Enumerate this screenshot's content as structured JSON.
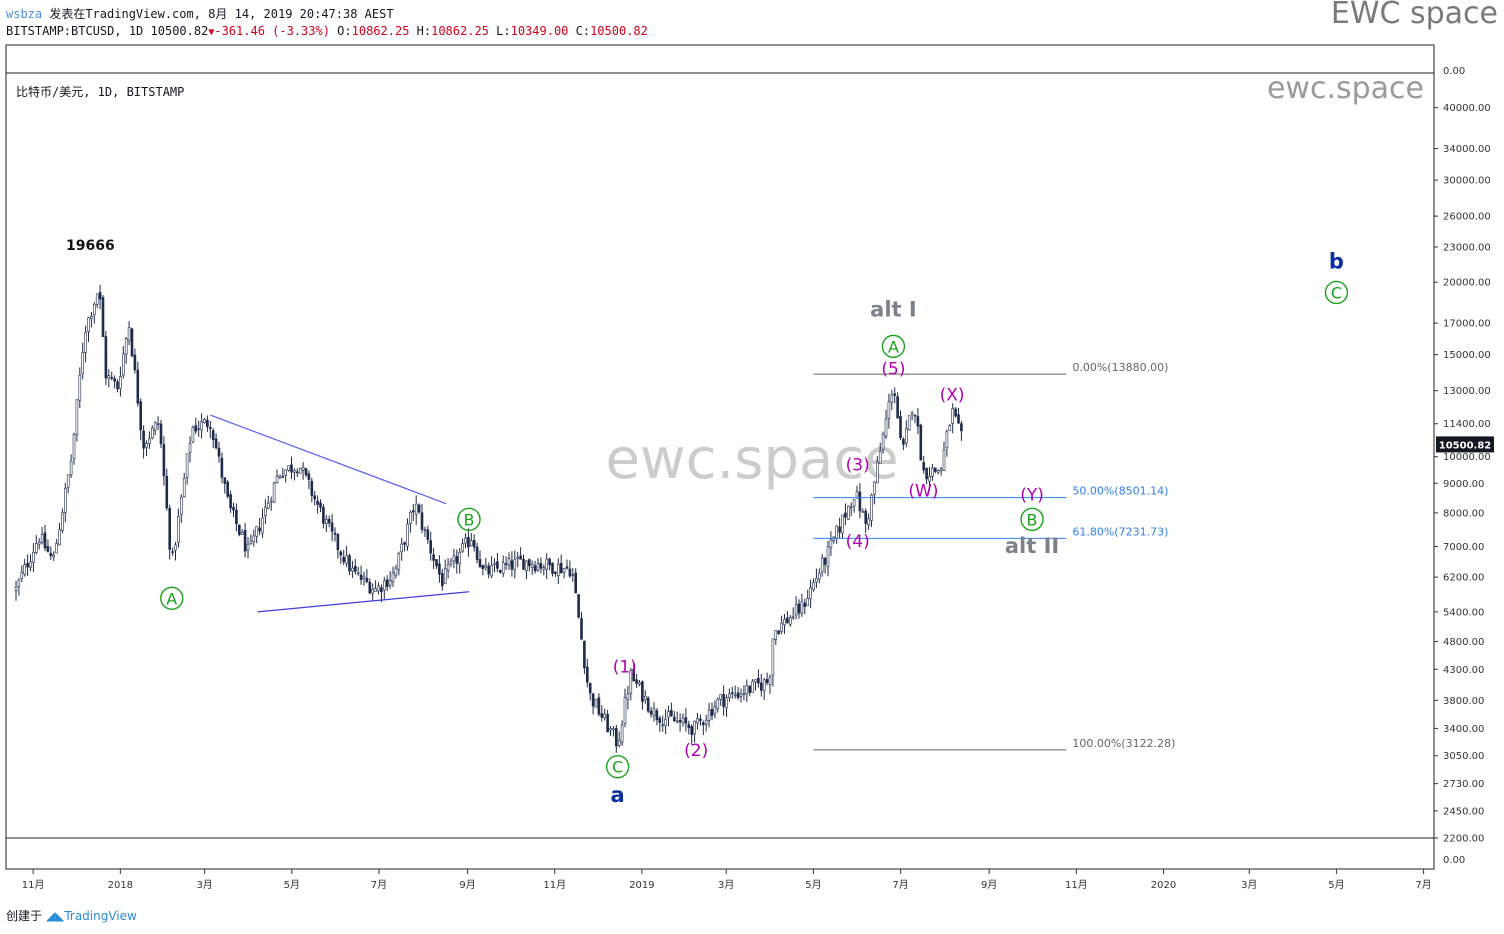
{
  "header": {
    "user": "wsbza",
    "published": "发表在TradingView.com, 8月 14, 2019 20:47:38 AEST",
    "symbol": "BITSTAMP:BTCUSD, 1D",
    "last": "10500.82",
    "change": "-361.46 (-3.33%)",
    "o_label": "O:",
    "o": "10862.25",
    "h_label": "H:",
    "h": "10862.25",
    "l_label": "L:",
    "l": "10349.00",
    "c_label": "C:",
    "c": "10500.82"
  },
  "brand": "EWC space",
  "footer": {
    "created": "创建于",
    "tv": "TradingView"
  },
  "chart_data": {
    "type": "candlestick",
    "title": "比特币/美元, 1D, BITSTAMP",
    "watermark_top": "ewc.space",
    "watermark_center": "ewc.space",
    "y_scale": "log",
    "ylim": [
      2200,
      45000
    ],
    "x_ticks": [
      "11月",
      "2018",
      "3月",
      "5月",
      "7月",
      "9月",
      "11月",
      "2019",
      "3月",
      "5月",
      "7月",
      "9月",
      "11月",
      "2020",
      "3月",
      "5月",
      "7月"
    ],
    "y_ticks": [
      "40000.00",
      "34000.00",
      "30000.00",
      "26000.00",
      "23000.00",
      "20000.00",
      "17000.00",
      "15000.00",
      "13000.00",
      "11400.00",
      "10000.00",
      "9000.00",
      "8000.00",
      "7000.00",
      "6200.00",
      "5400.00",
      "4800.00",
      "4300.00",
      "3800.00",
      "3400.00",
      "3050.00",
      "2730.00",
      "2450.00",
      "2200.00"
    ],
    "top_scale_value": "0.00",
    "bottom_scale_value": "0.00",
    "price_badge": "10500.82",
    "peak_label": "19666",
    "price_path": [
      [
        "2017-10-20",
        5900
      ],
      [
        "2017-11-05",
        7300
      ],
      [
        "2017-11-15",
        6600
      ],
      [
        "2017-11-28",
        10000
      ],
      [
        "2017-12-07",
        16500
      ],
      [
        "2017-12-17",
        19600
      ],
      [
        "2017-12-22",
        13800
      ],
      [
        "2017-12-30",
        13200
      ],
      [
        "2018-01-07",
        17000
      ],
      [
        "2018-01-17",
        10500
      ],
      [
        "2018-01-28",
        11500
      ],
      [
        "2018-02-06",
        6500
      ],
      [
        "2018-02-20",
        11200
      ],
      [
        "2018-03-05",
        11500
      ],
      [
        "2018-03-18",
        8200
      ],
      [
        "2018-04-01",
        6800
      ],
      [
        "2018-04-22",
        9400
      ],
      [
        "2018-05-06",
        9700
      ],
      [
        "2018-05-29",
        7300
      ],
      [
        "2018-06-13",
        6300
      ],
      [
        "2018-06-29",
        5900
      ],
      [
        "2018-07-12",
        6300
      ],
      [
        "2018-07-26",
        8300
      ],
      [
        "2018-08-14",
        6100
      ],
      [
        "2018-09-04",
        7300
      ],
      [
        "2018-09-12",
        6300
      ],
      [
        "2018-10-10",
        6600
      ],
      [
        "2018-11-13",
        6400
      ],
      [
        "2018-11-25",
        3900
      ],
      [
        "2018-12-15",
        3200
      ],
      [
        "2018-12-24",
        4200
      ],
      [
        "2019-01-10",
        3600
      ],
      [
        "2019-02-07",
        3400
      ],
      [
        "2019-02-24",
        3800
      ],
      [
        "2019-03-31",
        4100
      ],
      [
        "2019-04-03",
        5000
      ],
      [
        "2019-04-23",
        5500
      ],
      [
        "2019-05-11",
        6800
      ],
      [
        "2019-05-30",
        8700
      ],
      [
        "2019-06-07",
        7600
      ],
      [
        "2019-06-26",
        13500
      ],
      [
        "2019-07-02",
        10000
      ],
      [
        "2019-07-10",
        12600
      ],
      [
        "2019-07-17",
        9400
      ],
      [
        "2019-07-29",
        9500
      ],
      [
        "2019-08-06",
        12000
      ],
      [
        "2019-08-14",
        10500
      ]
    ],
    "trendlines": [
      {
        "from": [
          "2018-03-05",
          11800
        ],
        "to": [
          "2018-08-17",
          8300
        ],
        "color": "#5b5ef0"
      },
      {
        "from": [
          "2018-04-07",
          5400
        ],
        "to": [
          "2018-09-02",
          5850
        ],
        "color": "#3f3fe0"
      }
    ],
    "fibonacci": [
      {
        "label": "0.00%(13880.00)",
        "price": 13880,
        "color": "#666666"
      },
      {
        "label": "50.00%(8501.14)",
        "price": 8501.14,
        "color": "#2f80ed"
      },
      {
        "label": "61.80%(7231.73)",
        "price": 7231.73,
        "color": "#2f80ed"
      },
      {
        "label": "100.00%(3122.28)",
        "price": 3122.28,
        "color": "#666666"
      }
    ],
    "wave_labels": [
      {
        "text": "A",
        "style": "circle-green",
        "date": "2018-02-06",
        "price": 5700
      },
      {
        "text": "B",
        "style": "circle-green",
        "date": "2018-09-02",
        "price": 7800
      },
      {
        "text": "C",
        "style": "circle-green",
        "date": "2018-12-15",
        "price": 2920
      },
      {
        "text": "a",
        "style": "bold-blue",
        "date": "2018-12-15",
        "price": 2620
      },
      {
        "text": "(1)",
        "style": "magenta",
        "date": "2018-12-20",
        "price": 4350
      },
      {
        "text": "(2)",
        "style": "magenta",
        "date": "2019-02-08",
        "price": 3120
      },
      {
        "text": "(3)",
        "style": "magenta",
        "date": "2019-06-01",
        "price": 9700
      },
      {
        "text": "(4)",
        "style": "magenta",
        "date": "2019-06-01",
        "price": 7150
      },
      {
        "text": "(5)",
        "style": "magenta",
        "date": "2019-06-26",
        "price": 14200
      },
      {
        "text": "A",
        "style": "circle-green",
        "date": "2019-06-26",
        "price": 15500
      },
      {
        "text": "alt I",
        "style": "bold-gray",
        "date": "2019-06-26",
        "price": 18000
      },
      {
        "text": "(X)",
        "style": "magenta",
        "date": "2019-08-06",
        "price": 12800
      },
      {
        "text": "(W)",
        "style": "magenta",
        "date": "2019-07-17",
        "price": 8750
      },
      {
        "text": "(Y)",
        "style": "magenta",
        "date": "2019-10-01",
        "price": 8600
      },
      {
        "text": "B",
        "style": "circle-green",
        "date": "2019-10-01",
        "price": 7800
      },
      {
        "text": "alt II",
        "style": "bold-gray",
        "date": "2019-10-01",
        "price": 7050
      },
      {
        "text": "b",
        "style": "bold-blue",
        "date": "2020-05-01",
        "price": 21800
      },
      {
        "text": "C",
        "style": "circle-green",
        "date": "2020-05-01",
        "price": 19200
      }
    ],
    "grid": false,
    "legend": "none"
  }
}
